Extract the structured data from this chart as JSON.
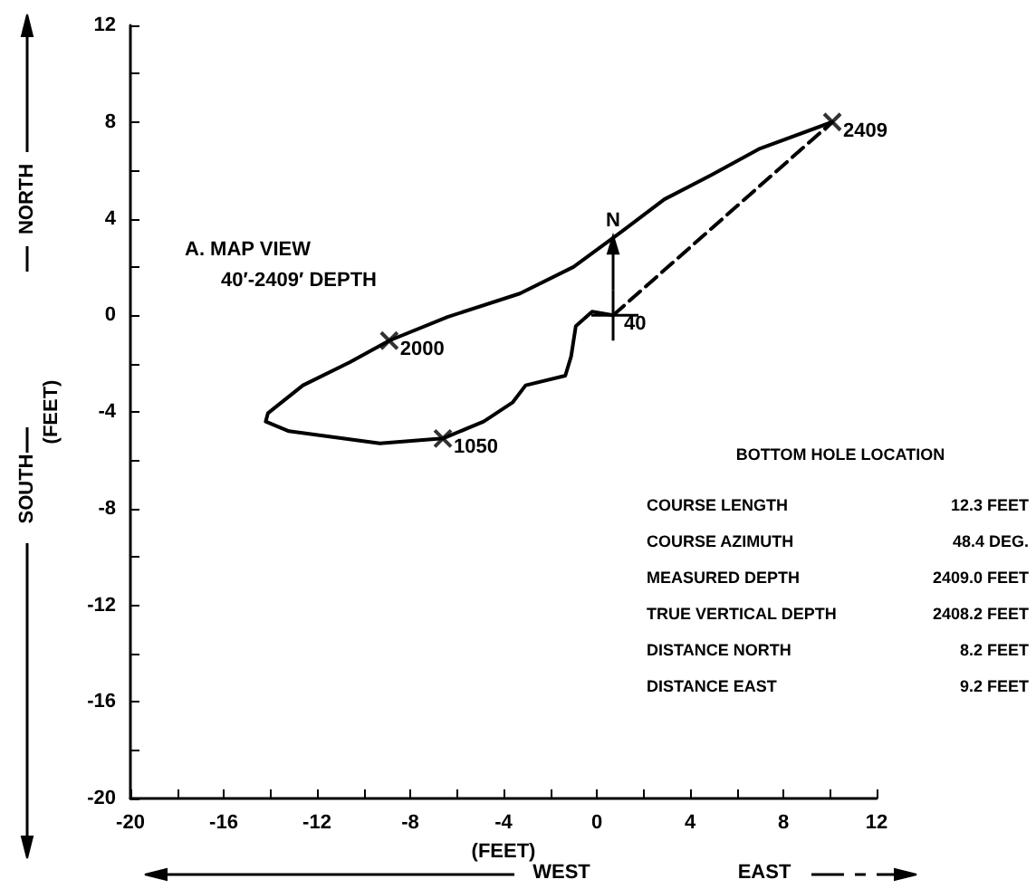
{
  "chart_data": {
    "type": "line",
    "xlabel": "(FEET)",
    "ylabel": "(FEET)",
    "xlim": [
      -20,
      12
    ],
    "ylim": [
      -20,
      12
    ],
    "xticks": [
      -20,
      {
        "value": -18,
        "label": null
      },
      -16,
      {
        "value": -14,
        "label": null
      },
      -12,
      {
        "value": -10,
        "label": null
      },
      -8,
      {
        "value": -6,
        "label": null
      },
      -4,
      {
        "value": -2,
        "label": null
      },
      0,
      {
        "value": 2,
        "label": null
      },
      4,
      {
        "value": 6,
        "label": null
      },
      8,
      {
        "value": 10,
        "label": null
      },
      12
    ],
    "yticks": [
      -20,
      {
        "value": -18,
        "label": null
      },
      -16,
      {
        "value": -14,
        "label": null
      },
      -12,
      {
        "value": -10,
        "label": null
      },
      -8,
      {
        "value": -6,
        "label": null
      },
      -4,
      {
        "value": -2,
        "label": null
      },
      0,
      {
        "value": 2,
        "label": null
      },
      4,
      {
        "value": 6,
        "label": null
      },
      8,
      {
        "value": 10,
        "label": null
      },
      12
    ],
    "grid": false,
    "series": [
      {
        "color": "#000000",
        "marker": "none",
        "line_style": "solid",
        "x": [
          0.7,
          -0.2,
          -0.9,
          -1.1,
          -1.35,
          -3.05,
          -3.6,
          -4.85,
          -6.6,
          -9.3,
          -13.2,
          -14.2,
          -14.1,
          -12.6,
          -10.6,
          -8.9,
          -6.4,
          -3.3,
          -1.0,
          1.05,
          2.9,
          4.9,
          7.0,
          10.1
        ],
        "values": [
          0.0,
          0.15,
          -0.45,
          -1.7,
          -2.5,
          -2.9,
          -3.6,
          -4.4,
          -5.1,
          -5.3,
          -4.8,
          -4.4,
          -4.05,
          -2.9,
          -1.95,
          -1.05,
          -0.07,
          0.9,
          2.0,
          3.45,
          4.8,
          5.8,
          6.9,
          8.0
        ]
      },
      {
        "color": "#000000",
        "marker": "none",
        "line_style": "dashed",
        "x": [
          0.7,
          10.1
        ],
        "values": [
          0.0,
          8.0
        ]
      },
      {
        "type": "scatter",
        "color": "#000000",
        "marker": "cross",
        "x": [
          10.1,
          -8.9,
          -6.6
        ],
        "values": [
          8.0,
          -1.05,
          -5.1
        ]
      }
    ],
    "annotations": [
      "A. MAP VIEW",
      "40′-2409′ DEPTH",
      "NORTH",
      "SOUTH",
      "WEST",
      "EAST",
      "N",
      "BOTTOM HOLE LOCATION",
      "COURSE LENGTH 12.3 FEET",
      "COURSE AZIMUTH 48.4 DEG.",
      "MEASURED DEPTH 2409.0 FEET",
      "TRUE VERTICAL DEPTH 2408.2 FEET",
      "DISTANCE NORTH 8.2 FEET",
      "DISTANCE EAST 9.2 FEET",
      {
        "text": "2409",
        "x": 10.1,
        "y": 8.0
      },
      {
        "text": "2000",
        "x": -8.9,
        "y": -1.05
      },
      {
        "text": "1050",
        "x": -6.6,
        "y": -5.1
      },
      {
        "text": "40",
        "x": 0.7,
        "y": 0.0
      }
    ]
  }
}
